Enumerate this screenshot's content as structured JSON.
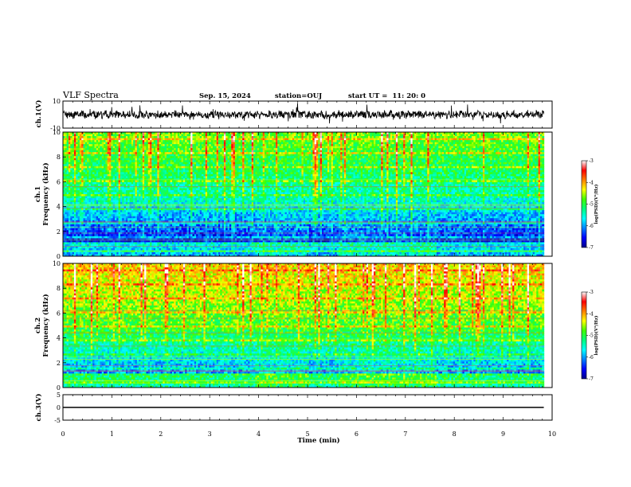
{
  "chart_data": {
    "type": "heatmap",
    "title": "VLF Spectra",
    "date": "Sep. 15, 2024",
    "station": "station=OUJ",
    "start_ut": "start UT =  11: 20: 0",
    "xlabel": "Time (min)",
    "xlim": [
      0,
      10
    ],
    "xticks": [
      "0",
      "1",
      "2",
      "3",
      "4",
      "5",
      "6",
      "7",
      "8",
      "9",
      "10"
    ],
    "x_data_end": 9.83,
    "grid": false,
    "panels": [
      {
        "name": "ch1-waveform",
        "type": "line",
        "ylabel": "ch.1(V)",
        "ylim": [
          -10,
          10
        ],
        "yticks": [
          "10",
          "-10"
        ],
        "baseline": 0
      },
      {
        "name": "ch1-spectrogram",
        "type": "heatmap",
        "ylabel_line1": "ch.1",
        "ylabel_line2": "Frequency (kHz)",
        "ylim": [
          0,
          10
        ],
        "yticks": [
          "10",
          "8",
          "6",
          "4",
          "2",
          "0"
        ]
      },
      {
        "name": "ch2-spectrogram",
        "type": "heatmap",
        "ylabel_line1": "ch.2",
        "ylabel_line2": "Frequency (kHz)",
        "ylim": [
          0,
          10
        ],
        "yticks": [
          "10",
          "8",
          "6",
          "4",
          "2",
          "0"
        ]
      },
      {
        "name": "ch3-waveform",
        "type": "line",
        "ylabel": "ch.3(V)",
        "ylim": [
          -5,
          5
        ],
        "yticks": [
          "5",
          "0",
          "-5"
        ],
        "baseline": 0
      }
    ],
    "colorbar": {
      "label": "log(PSD)(V²/Hz)",
      "range": [
        -7,
        -3
      ],
      "ticks": [
        "-3",
        "-4",
        "-5",
        "-6",
        "-7"
      ],
      "colors": [
        "#00008b",
        "#0000ff",
        "#0080ff",
        "#00ffff",
        "#00ff80",
        "#40ff00",
        "#ffff00",
        "#ff8000",
        "#ff0000",
        "#ffffff"
      ]
    }
  }
}
